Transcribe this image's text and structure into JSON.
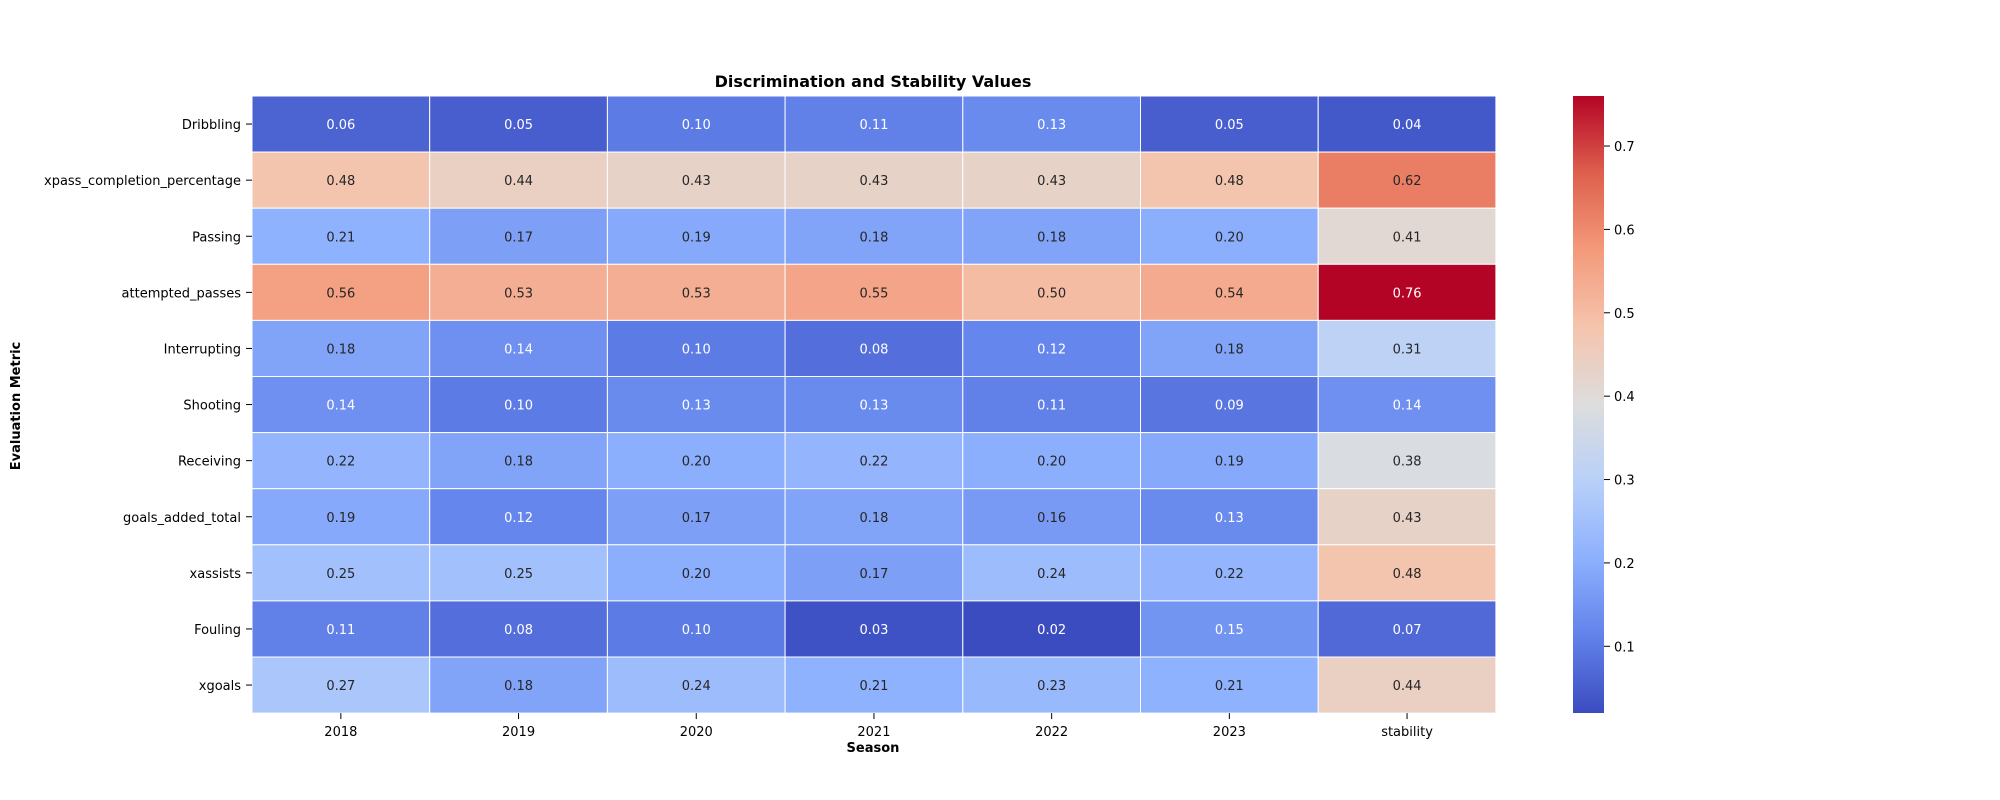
{
  "chart_data": {
    "type": "heatmap",
    "title": "Discrimination and Stability Values",
    "xlabel": "Season",
    "ylabel": "Evaluation Metric",
    "columns": [
      "2018",
      "2019",
      "2020",
      "2021",
      "2022",
      "2023",
      "stability"
    ],
    "rows": [
      "Dribbling",
      "xpass_completion_percentage",
      "Passing",
      "attempted_passes",
      "Interrupting",
      "Shooting",
      "Receiving",
      "goals_added_total",
      "xassists",
      "Fouling",
      "xgoals"
    ],
    "values": [
      [
        0.06,
        0.05,
        0.1,
        0.11,
        0.13,
        0.05,
        0.04
      ],
      [
        0.48,
        0.44,
        0.43,
        0.43,
        0.43,
        0.48,
        0.62
      ],
      [
        0.21,
        0.17,
        0.19,
        0.18,
        0.18,
        0.2,
        0.41
      ],
      [
        0.56,
        0.53,
        0.53,
        0.55,
        0.5,
        0.54,
        0.76
      ],
      [
        0.18,
        0.14,
        0.1,
        0.08,
        0.12,
        0.18,
        0.31
      ],
      [
        0.14,
        0.1,
        0.13,
        0.13,
        0.11,
        0.09,
        0.14
      ],
      [
        0.22,
        0.18,
        0.2,
        0.22,
        0.2,
        0.19,
        0.38
      ],
      [
        0.19,
        0.12,
        0.17,
        0.18,
        0.16,
        0.13,
        0.43
      ],
      [
        0.25,
        0.25,
        0.2,
        0.17,
        0.24,
        0.22,
        0.48
      ],
      [
        0.11,
        0.08,
        0.1,
        0.03,
        0.02,
        0.15,
        0.07
      ],
      [
        0.27,
        0.18,
        0.24,
        0.21,
        0.23,
        0.21,
        0.44
      ]
    ],
    "colormap": "coolwarm",
    "color_range": [
      0.02,
      0.76
    ],
    "colorbar_ticks": [
      0.1,
      0.2,
      0.3,
      0.4,
      0.5,
      0.6,
      0.7
    ],
    "value_format": "2 decimals"
  }
}
